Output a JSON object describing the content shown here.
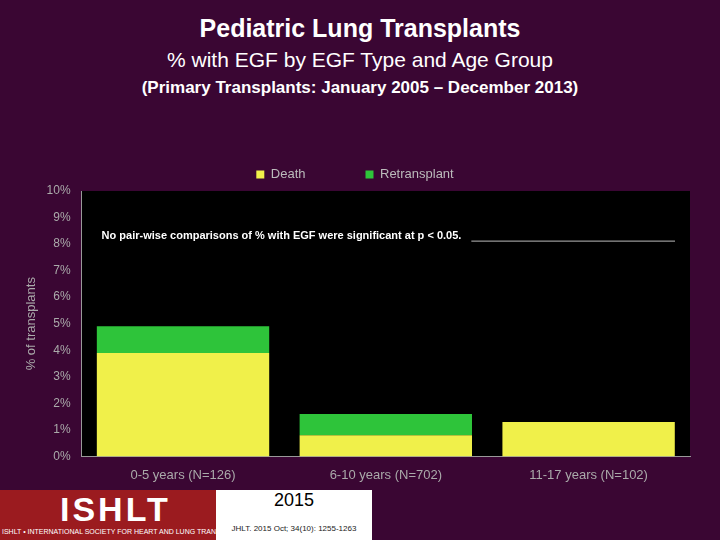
{
  "chart_data": {
    "type": "bar",
    "title": "Pediatric Lung Transplants",
    "subtitle": "% with EGF by EGF Type and Age Group",
    "subtitle2": "(Primary Transplants: January 2005 – December 2013)",
    "y_label": "% of transplants",
    "annotation": "No pair-wise comparisons of % with EGF were significant at p < 0.05.",
    "categories": [
      "0-5 years (N=126)",
      "6-10 years (N=702)",
      "11-17 years (N=102)"
    ],
    "series": [
      {
        "name": "Death",
        "color": "#f0f04a",
        "values": [
          3.9,
          0.8,
          1.3
        ]
      },
      {
        "name": "Retransplant",
        "color": "#2ec43a",
        "values": [
          1.0,
          0.8,
          0
        ]
      }
    ],
    "stacked": true,
    "legend": "top",
    "grid": false,
    "ylim": [
      0,
      10
    ],
    "yticks": [
      {
        "value": 0,
        "label": "0%"
      },
      {
        "value": 1,
        "label": "1%"
      },
      {
        "value": 2,
        "label": "2%"
      },
      {
        "value": 3,
        "label": "3%"
      },
      {
        "value": 4,
        "label": "4%"
      },
      {
        "value": 5,
        "label": "5%"
      },
      {
        "value": 6,
        "label": "6%"
      },
      {
        "value": 7,
        "label": "7%"
      },
      {
        "value": 8,
        "label": "8%"
      },
      {
        "value": 9,
        "label": "9%"
      },
      {
        "value": 10,
        "label": "10%"
      }
    ],
    "footer": {
      "logo": "ISHLT",
      "logo_text": "ISHLT • INTERNATIONAL SOCIETY FOR HEART AND LUNG TRANSPLANTATION",
      "year": "2015",
      "citation": "JHLT. 2015 Oct; 34(10): 1255-1263"
    }
  }
}
